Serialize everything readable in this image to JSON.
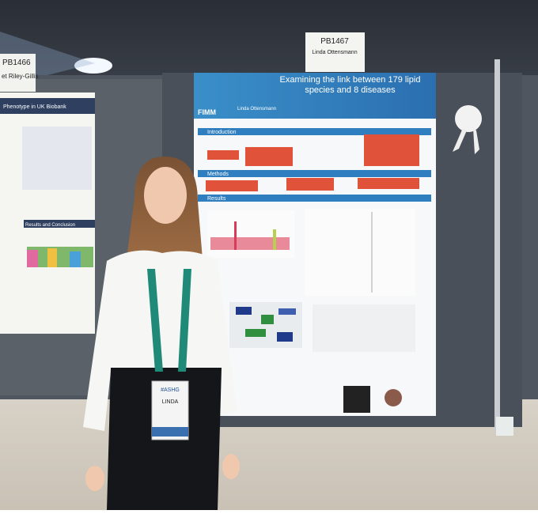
{
  "left_poster": {
    "board_number": "PB1466",
    "presenter": "et Riley-Gillis",
    "title": "Phenotype in UK Biobank",
    "section": "Results and Conclusion"
  },
  "main_poster": {
    "board_number": "PB1467",
    "presenter": "Linda Ottensmann",
    "title": "Examining the link between 179 lipid species and 8 diseases",
    "logo": "FIMM",
    "sections": [
      "Introduction",
      "Methods",
      "Results"
    ]
  },
  "badge": {
    "name": "LINDA",
    "event": "#ASHG"
  }
}
